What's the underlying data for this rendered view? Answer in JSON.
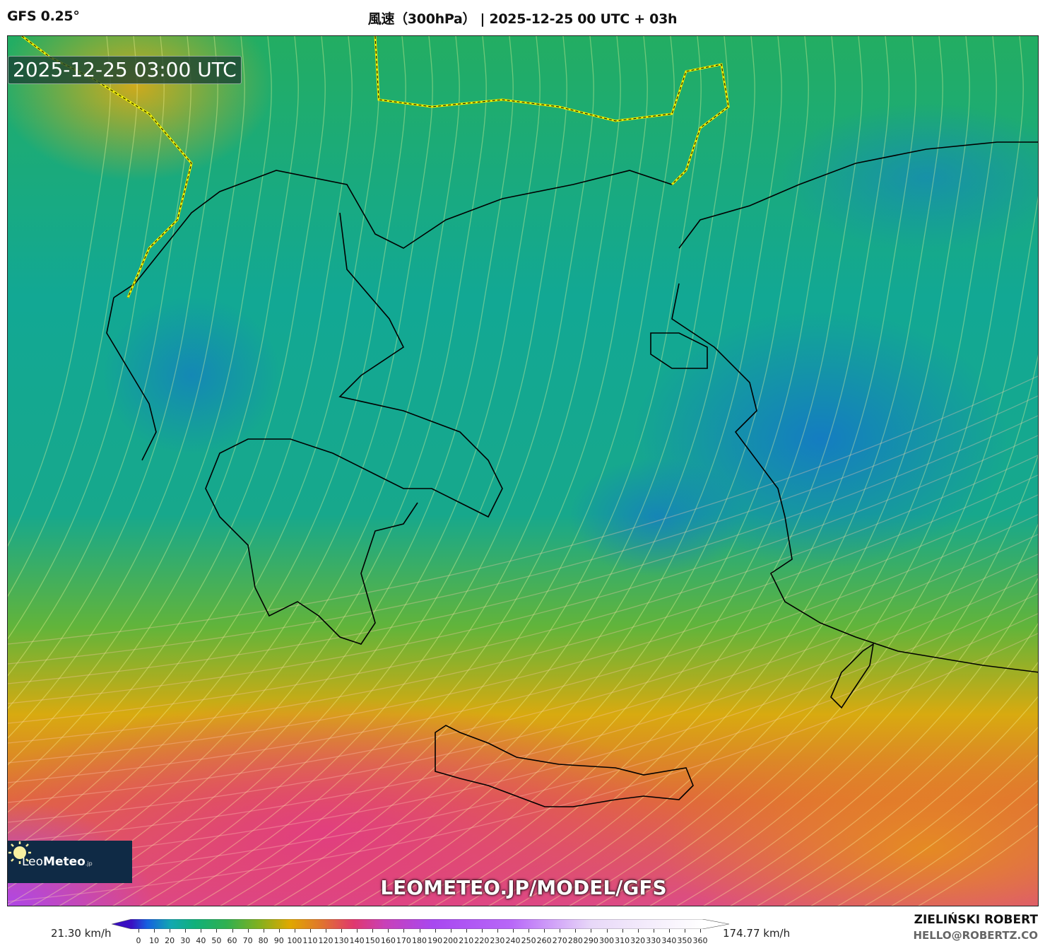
{
  "header": {
    "model": "GFS 0.25°",
    "title": "風速（300hPa） | 2025-12-25 00 UTC + 03h"
  },
  "map": {
    "timestamp": "2025-12-25 03:00 UTC",
    "watermark_url": "LEOMETEO.JP/MODEL/GFS",
    "logo": {
      "prefix": "Leo",
      "bold": "Meteo",
      "suffix": ".jp",
      "icon": "sun-icon"
    }
  },
  "colorbar": {
    "min_label": "21.30 km/h",
    "max_label": "174.77 km/h",
    "ticks": [
      "0",
      "10",
      "20",
      "30",
      "40",
      "50",
      "60",
      "70",
      "80",
      "90",
      "100",
      "110",
      "120",
      "130",
      "140",
      "150",
      "160",
      "170",
      "180",
      "190",
      "200",
      "210",
      "220",
      "230",
      "240",
      "250",
      "260",
      "270",
      "280",
      "290",
      "300",
      "310",
      "320",
      "330",
      "340",
      "350",
      "360"
    ],
    "stops": [
      {
        "v": 0,
        "c": "#3a0fc2"
      },
      {
        "v": 10,
        "c": "#1560e0"
      },
      {
        "v": 25,
        "c": "#12a8b0"
      },
      {
        "v": 40,
        "c": "#10b07a"
      },
      {
        "v": 60,
        "c": "#30b050"
      },
      {
        "v": 80,
        "c": "#80b020"
      },
      {
        "v": 100,
        "c": "#e0a800"
      },
      {
        "v": 120,
        "c": "#e0742e"
      },
      {
        "v": 140,
        "c": "#e0386e"
      },
      {
        "v": 160,
        "c": "#c840b8"
      },
      {
        "v": 190,
        "c": "#a848f0"
      },
      {
        "v": 240,
        "c": "#b868f8"
      },
      {
        "v": 290,
        "c": "#e8d8f8"
      },
      {
        "v": 360,
        "c": "#ffffff"
      }
    ]
  },
  "footer": {
    "author": "ZIELIŃSKI ROBERT",
    "email": "HELLO@ROBERTZ.CO"
  }
}
